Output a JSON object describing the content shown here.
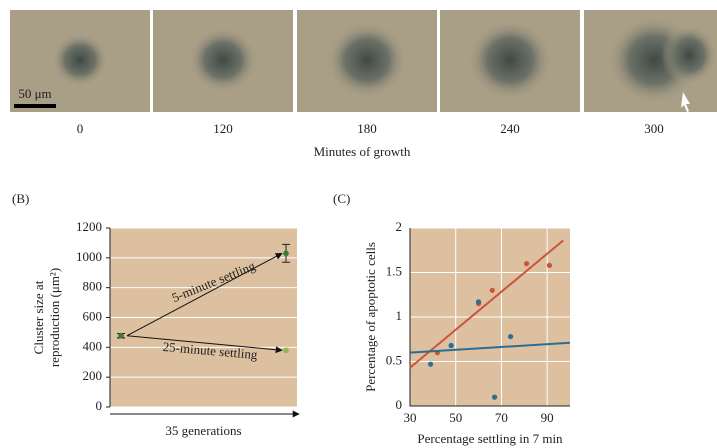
{
  "panel_a": {
    "scale_bar": "50 μm",
    "frames": [
      "0",
      "120",
      "180",
      "240",
      "300"
    ],
    "xlabel": "Minutes of growth"
  },
  "chart_data": [
    {
      "type": "arrow",
      "panel": "(B)",
      "ylabel": [
        "Cluster size at",
        "reproduction (μm²)"
      ],
      "xlabel": "35 generations",
      "categories": [
        null,
        null
      ],
      "ylim": [
        0,
        1200
      ],
      "yticks": [
        0,
        200,
        400,
        600,
        800,
        1000,
        1200
      ],
      "grid": true,
      "background": "#dcc09f",
      "series": [
        {
          "name": "5-minute settling",
          "color": "#111111",
          "marker_colors": [
            "#3b7a3b",
            "#3b7a3b"
          ],
          "values": [
            478,
            1030
          ],
          "errors": [
            15,
            60
          ]
        },
        {
          "name": "25-minute settling",
          "color": "#111111",
          "marker_colors": [
            "#3b7a3b",
            "#8cb84c"
          ],
          "values": [
            478,
            380
          ],
          "errors": [
            15,
            null
          ]
        }
      ]
    },
    {
      "type": "scatter",
      "panel": "(C)",
      "ylabel": "Percentage of apoptotic cells",
      "xlabel": "Percentage settling in 7 min",
      "xlim": [
        30,
        100
      ],
      "ylim": [
        0,
        2
      ],
      "xticks": [
        30,
        50,
        70,
        90
      ],
      "yticks": [
        0,
        0.5,
        1,
        1.5,
        2
      ],
      "grid": true,
      "background": "#dcc09f",
      "series": [
        {
          "color": "#c9553b",
          "x": [
            42,
            60,
            66,
            81,
            91
          ],
          "values": [
            0.6,
            1.15,
            1.3,
            1.6,
            1.58
          ]
        },
        {
          "color": "#2a6e95",
          "x": [
            39,
            48,
            60,
            67,
            74
          ],
          "values": [
            0.47,
            0.68,
            1.17,
            0.1,
            0.78
          ]
        },
        {
          "kind": "line",
          "color": "#c9553b",
          "x": [
            30,
            97
          ],
          "values": [
            0.43,
            1.86
          ]
        },
        {
          "kind": "line",
          "color": "#2a6e95",
          "x": [
            30,
            100
          ],
          "values": [
            0.6,
            0.71
          ]
        }
      ]
    }
  ]
}
